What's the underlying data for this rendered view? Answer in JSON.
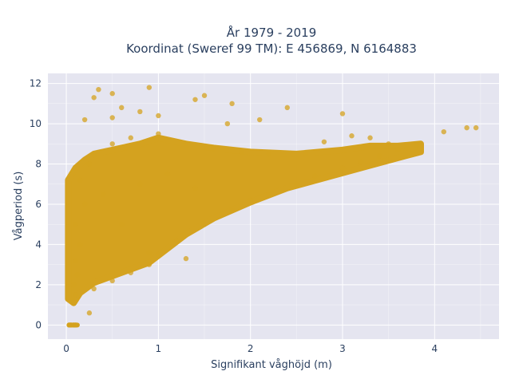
{
  "chart_data": {
    "type": "scatter",
    "title_line1": "År 1979 - 2019",
    "title_line2": "Koordinat (Sweref 99 TM): E 456869, N 6164883",
    "xlabel": "Signifikant våghöjd (m)",
    "ylabel": "Vågperiod (s)",
    "xlim": [
      -0.2,
      4.7
    ],
    "ylim": [
      -0.7,
      12.5
    ],
    "x_ticks": [
      0,
      1,
      2,
      3,
      4
    ],
    "y_ticks": [
      0,
      2,
      4,
      6,
      8,
      10,
      12
    ],
    "grid": true,
    "colors": {
      "marker": "#d4a21f",
      "plot_bg": "#e5e5f0",
      "grid": "#ffffff",
      "text": "#2a3f5f"
    },
    "series": [
      {
        "values": [
          [
            0.03,
            0.0
          ],
          [
            0.05,
            0.0
          ],
          [
            0.08,
            0.0
          ],
          [
            0.1,
            0.0
          ],
          [
            0.07,
            1.2
          ],
          [
            0.1,
            1.5
          ],
          [
            0.08,
            2.0
          ],
          [
            0.12,
            2.5
          ],
          [
            0.1,
            3.2
          ],
          [
            0.15,
            4.0
          ],
          [
            0.1,
            5.0
          ],
          [
            0.2,
            6.0
          ],
          [
            0.15,
            7.2
          ],
          [
            0.25,
            8.0
          ],
          [
            0.3,
            8.5
          ],
          [
            0.3,
            1.8
          ],
          [
            0.5,
            2.2
          ],
          [
            0.7,
            2.6
          ],
          [
            0.9,
            3.0
          ],
          [
            1.0,
            3.5
          ],
          [
            1.2,
            4.2
          ],
          [
            1.5,
            5.0
          ],
          [
            1.8,
            5.7
          ],
          [
            2.0,
            6.2
          ],
          [
            2.2,
            6.5
          ],
          [
            2.5,
            7.0
          ],
          [
            2.7,
            7.4
          ],
          [
            3.0,
            7.8
          ],
          [
            3.2,
            8.1
          ],
          [
            3.4,
            8.4
          ],
          [
            3.6,
            8.7
          ],
          [
            3.8,
            8.9
          ],
          [
            4.1,
            9.6
          ],
          [
            4.35,
            9.8
          ],
          [
            4.45,
            9.8
          ],
          [
            3.1,
            9.4
          ],
          [
            3.3,
            9.3
          ],
          [
            0.5,
            9.0
          ],
          [
            0.7,
            9.3
          ],
          [
            1.0,
            9.5
          ],
          [
            1.3,
            9.0
          ],
          [
            1.6,
            8.8
          ],
          [
            1.9,
            8.6
          ],
          [
            2.2,
            8.5
          ],
          [
            2.6,
            8.5
          ],
          [
            0.3,
            11.3
          ],
          [
            0.35,
            11.7
          ],
          [
            0.5,
            11.5
          ],
          [
            0.9,
            11.8
          ],
          [
            1.4,
            11.2
          ],
          [
            1.75,
            10.0
          ],
          [
            0.2,
            10.2
          ],
          [
            0.5,
            10.3
          ],
          [
            2.4,
            10.8
          ],
          [
            3.0,
            10.5
          ],
          [
            1.0,
            10.4
          ],
          [
            0.6,
            10.8
          ],
          [
            0.8,
            10.6
          ],
          [
            1.5,
            11.4
          ],
          [
            1.8,
            11.0
          ],
          [
            2.1,
            10.2
          ],
          [
            0.9,
            3.6
          ],
          [
            1.3,
            3.3
          ],
          [
            0.6,
            5.0
          ],
          [
            0.4,
            6.5
          ],
          [
            0.8,
            7.0
          ],
          [
            1.1,
            7.5
          ],
          [
            1.4,
            6.8
          ],
          [
            2.8,
            9.1
          ],
          [
            3.5,
            9.0
          ],
          [
            3.7,
            8.8
          ],
          [
            0.25,
            0.6
          ]
        ]
      }
    ]
  }
}
